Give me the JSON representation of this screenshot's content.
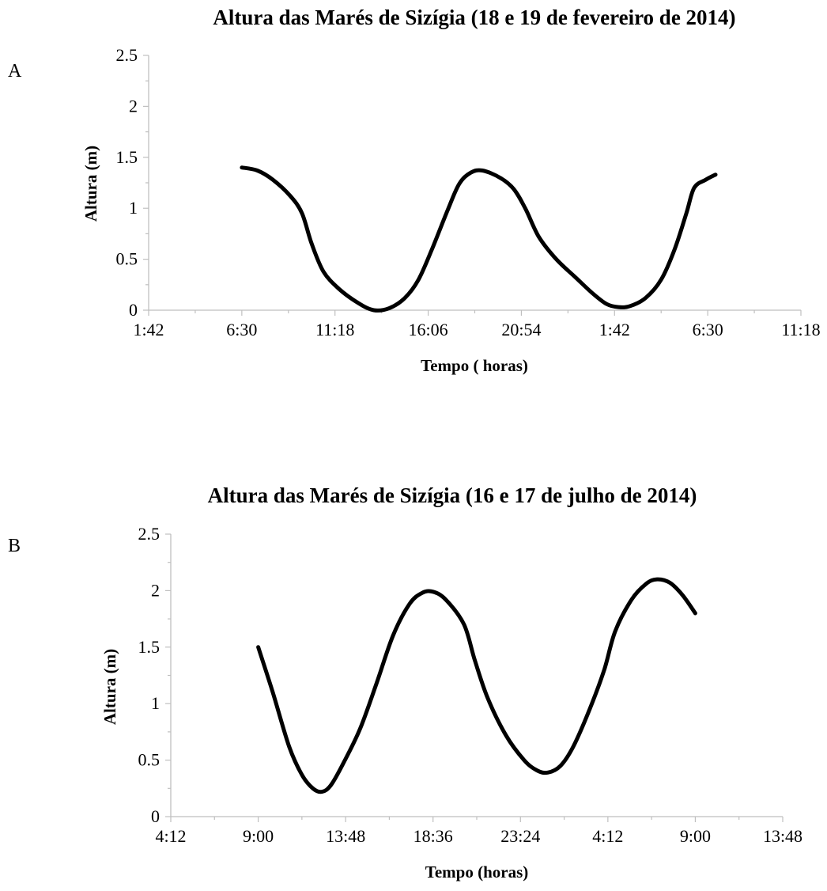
{
  "chart_data": [
    {
      "type": "line",
      "panel_label": "A",
      "title": "Altura das Marés de Sizígia (18 e 19 de fevereiro de 2014)",
      "xlabel": "Tempo ( horas)",
      "ylabel": "Altura (m)",
      "x_unit": "hours",
      "xlim": [
        1.7,
        35.3
      ],
      "ylim": [
        0,
        2.5
      ],
      "x_tick_values": [
        1.7,
        6.5,
        11.3,
        16.1,
        20.9,
        25.7,
        30.5,
        35.3
      ],
      "x_tick_labels": [
        "1:42",
        "6:30",
        "11:18",
        "16:06",
        "20:54",
        "1:42",
        "6:30",
        "11:18"
      ],
      "y_ticks": [
        0,
        0.5,
        1,
        1.5,
        2,
        2.5
      ],
      "y_tick_labels": [
        "0",
        "0.5",
        "1",
        "1.5",
        "2",
        "2.5"
      ],
      "series": [
        {
          "color": "#000000",
          "points": [
            [
              6.5,
              1.4
            ],
            [
              7.3,
              1.37
            ],
            [
              8.1,
              1.28
            ],
            [
              9.0,
              1.12
            ],
            [
              9.6,
              0.95
            ],
            [
              10.1,
              0.65
            ],
            [
              10.7,
              0.38
            ],
            [
              11.5,
              0.21
            ],
            [
              12.5,
              0.07
            ],
            [
              13.3,
              0.0
            ],
            [
              14.1,
              0.02
            ],
            [
              14.9,
              0.12
            ],
            [
              15.6,
              0.3
            ],
            [
              16.3,
              0.6
            ],
            [
              17.1,
              0.98
            ],
            [
              17.7,
              1.24
            ],
            [
              18.3,
              1.35
            ],
            [
              18.9,
              1.37
            ],
            [
              19.8,
              1.3
            ],
            [
              20.5,
              1.19
            ],
            [
              21.1,
              1.0
            ],
            [
              21.8,
              0.72
            ],
            [
              22.7,
              0.5
            ],
            [
              23.7,
              0.32
            ],
            [
              24.6,
              0.16
            ],
            [
              25.3,
              0.06
            ],
            [
              25.9,
              0.03
            ],
            [
              26.5,
              0.04
            ],
            [
              27.3,
              0.12
            ],
            [
              28.1,
              0.3
            ],
            [
              28.8,
              0.6
            ],
            [
              29.4,
              0.95
            ],
            [
              29.8,
              1.2
            ],
            [
              30.4,
              1.28
            ],
            [
              30.9,
              1.33
            ]
          ]
        }
      ]
    },
    {
      "type": "line",
      "panel_label": "B",
      "title": "Altura das Marés de Sizígia (16 e 17 de julho de 2014)",
      "xlabel": "Tempo (horas)",
      "ylabel": "Altura (m)",
      "x_unit": "hours",
      "xlim": [
        4.2,
        37.8
      ],
      "ylim": [
        0,
        2.5
      ],
      "x_tick_values": [
        4.2,
        9.0,
        13.8,
        18.6,
        23.4,
        28.2,
        33.0,
        37.8
      ],
      "x_tick_labels": [
        "4:12",
        "9:00",
        "13:48",
        "18:36",
        "23:24",
        "4:12",
        "9:00",
        "13:48"
      ],
      "y_ticks": [
        0,
        0.5,
        1,
        1.5,
        2,
        2.5
      ],
      "y_tick_labels": [
        "0",
        "0.5",
        "1",
        "1.5",
        "2",
        "2.5"
      ],
      "series": [
        {
          "color": "#000000",
          "points": [
            [
              9.0,
              1.5
            ],
            [
              9.8,
              1.1
            ],
            [
              10.7,
              0.62
            ],
            [
              11.4,
              0.37
            ],
            [
              12.0,
              0.25
            ],
            [
              12.5,
              0.22
            ],
            [
              13.0,
              0.28
            ],
            [
              13.7,
              0.48
            ],
            [
              14.6,
              0.78
            ],
            [
              15.5,
              1.18
            ],
            [
              16.4,
              1.6
            ],
            [
              17.3,
              1.88
            ],
            [
              18.0,
              1.98
            ],
            [
              18.6,
              1.99
            ],
            [
              19.3,
              1.92
            ],
            [
              20.3,
              1.7
            ],
            [
              20.9,
              1.38
            ],
            [
              21.6,
              1.05
            ],
            [
              22.6,
              0.72
            ],
            [
              23.6,
              0.5
            ],
            [
              24.3,
              0.41
            ],
            [
              24.9,
              0.39
            ],
            [
              25.6,
              0.45
            ],
            [
              26.3,
              0.62
            ],
            [
              27.2,
              0.95
            ],
            [
              28.0,
              1.3
            ],
            [
              28.6,
              1.64
            ],
            [
              29.5,
              1.92
            ],
            [
              30.3,
              2.06
            ],
            [
              30.9,
              2.1
            ],
            [
              31.6,
              2.07
            ],
            [
              32.3,
              1.96
            ],
            [
              33.0,
              1.8
            ]
          ]
        }
      ]
    }
  ]
}
